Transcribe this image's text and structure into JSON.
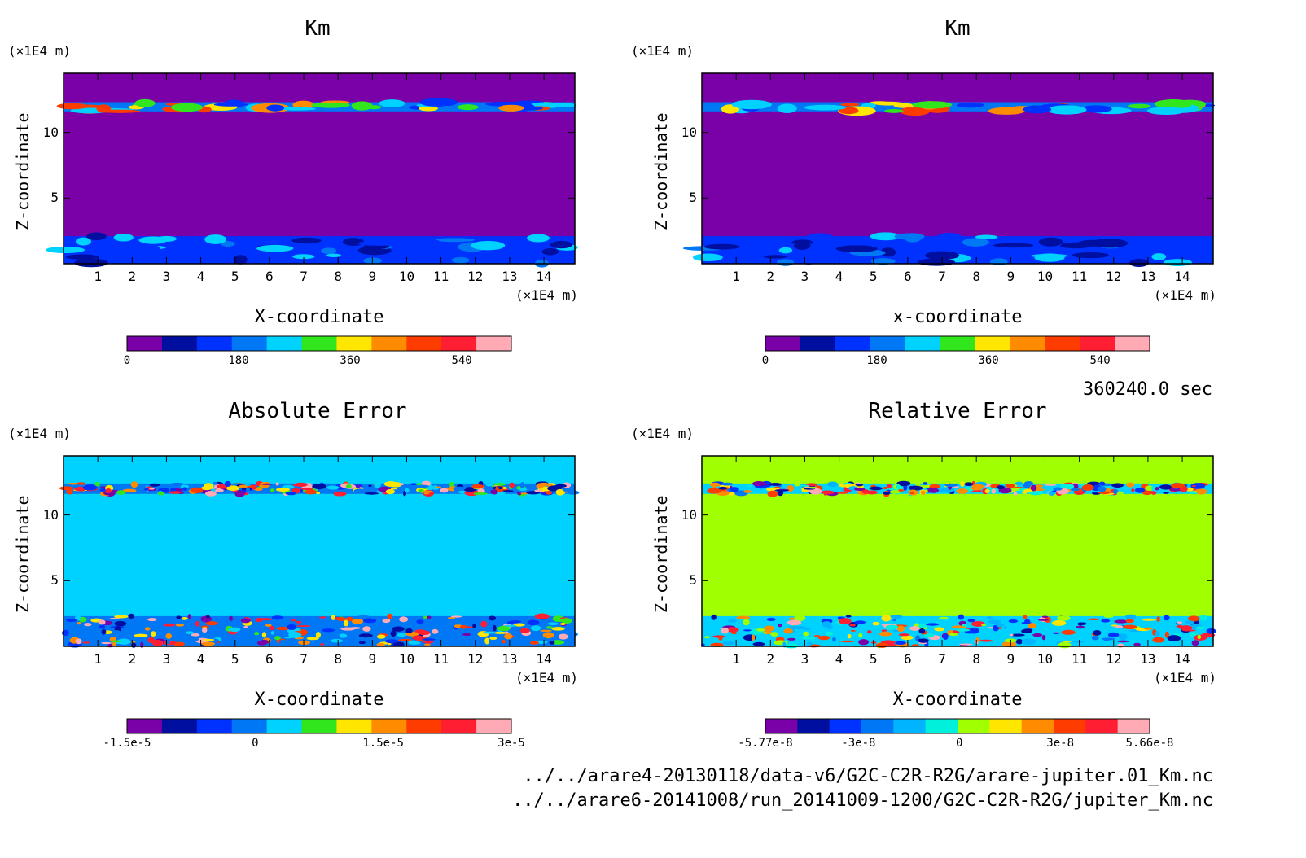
{
  "chart_data": [
    {
      "type": "heatmap",
      "title": "Km",
      "xlabel": "X-coordinate",
      "ylabel": "Z-coordinate",
      "x_unit": "(×1E4 m)",
      "y_unit": "(×1E4 m)",
      "xticks": [
        "1",
        "2",
        "3",
        "4",
        "5",
        "6",
        "7",
        "8",
        "9",
        "10",
        "11",
        "12",
        "13",
        "14"
      ],
      "yticks": [
        "5",
        "10"
      ],
      "xlim": [
        0,
        14.9
      ],
      "ylim": [
        0,
        14.5
      ],
      "background_color": "#7a00a8",
      "colorbar": {
        "colors": [
          "#7a00a8",
          "#000fa0",
          "#0032ff",
          "#0078f5",
          "#00d2ff",
          "#32e61e",
          "#ffe600",
          "#ff8c00",
          "#ff3c00",
          "#ff1e32",
          "#ffaab4"
        ],
        "tick_labels": [
          "0",
          "180",
          "360",
          "540"
        ],
        "tick_values": [
          0,
          180,
          360,
          540
        ],
        "range": [
          0,
          620
        ]
      },
      "features": [
        {
          "name": "upper layer band",
          "z_range": [
            11.6,
            12.3
          ]
        },
        {
          "name": "lower layer band",
          "z_range": [
            0,
            2.1
          ]
        }
      ]
    },
    {
      "type": "heatmap",
      "title": "Km",
      "xlabel": "x-coordinate",
      "ylabel": "Z-coordinate",
      "x_unit": "(×1E4 m)",
      "y_unit": "(×1E4 m)",
      "xticks": [
        "1",
        "2",
        "3",
        "4",
        "5",
        "6",
        "7",
        "8",
        "9",
        "10",
        "11",
        "12",
        "13",
        "14"
      ],
      "yticks": [
        "5",
        "10"
      ],
      "xlim": [
        0,
        14.9
      ],
      "ylim": [
        0,
        14.5
      ],
      "background_color": "#7a00a8",
      "colorbar": {
        "colors": [
          "#7a00a8",
          "#000fa0",
          "#0032ff",
          "#0078f5",
          "#00d2ff",
          "#32e61e",
          "#ffe600",
          "#ff8c00",
          "#ff3c00",
          "#ff1e32",
          "#ffaab4"
        ],
        "tick_labels": [
          "0",
          "180",
          "360",
          "540"
        ],
        "tick_values": [
          0,
          180,
          360,
          540
        ],
        "range": [
          0,
          620
        ]
      },
      "features": [
        {
          "name": "upper layer band",
          "z_range": [
            11.6,
            12.3
          ]
        },
        {
          "name": "lower layer band",
          "z_range": [
            0,
            2.1
          ]
        }
      ]
    },
    {
      "type": "heatmap",
      "title": "Absolute Error",
      "xlabel": "X-coordinate",
      "ylabel": "Z-coordinate",
      "x_unit": "(×1E4 m)",
      "y_unit": "(×1E4 m)",
      "xticks": [
        "1",
        "2",
        "3",
        "4",
        "5",
        "6",
        "7",
        "8",
        "9",
        "10",
        "11",
        "12",
        "13",
        "14"
      ],
      "yticks": [
        "5",
        "10"
      ],
      "xlim": [
        0,
        14.9
      ],
      "ylim": [
        0,
        14.5
      ],
      "background_color": "#00d2ff",
      "colorbar": {
        "colors": [
          "#7a00a8",
          "#000fa0",
          "#0032ff",
          "#0078f5",
          "#00d2ff",
          "#32e61e",
          "#ffe600",
          "#ff8c00",
          "#ff3c00",
          "#ff1e32",
          "#ffaab4"
        ],
        "tick_labels": [
          "-1.5e-5",
          "0",
          "1.5e-5",
          "3e-5"
        ],
        "tick_values": [
          -1.5e-05,
          0,
          1.5e-05,
          3e-05
        ]
      },
      "features": [
        {
          "name": "upper noise band",
          "z_range": [
            11.6,
            12.4
          ]
        },
        {
          "name": "lower noise band",
          "z_range": [
            0,
            2.3
          ]
        }
      ]
    },
    {
      "type": "heatmap",
      "title": "Relative Error",
      "xlabel": "X-coordinate",
      "ylabel": "Z-coordinate",
      "x_unit": "(×1E4 m)",
      "y_unit": "(×1E4 m)",
      "xticks": [
        "1",
        "2",
        "3",
        "4",
        "5",
        "6",
        "7",
        "8",
        "9",
        "10",
        "11",
        "12",
        "13",
        "14"
      ],
      "yticks": [
        "5",
        "10"
      ],
      "xlim": [
        0,
        14.9
      ],
      "ylim": [
        0,
        14.5
      ],
      "background_color": "#a0ff00",
      "colorbar": {
        "colors": [
          "#7a00a8",
          "#000fa0",
          "#0032ff",
          "#0078f5",
          "#00b4ff",
          "#00f0dc",
          "#a0ff00",
          "#ffe600",
          "#ff8c00",
          "#ff3c00",
          "#ff1e32",
          "#ffaab4"
        ],
        "tick_labels": [
          "-5.77e-8",
          "-3e-8",
          "0",
          "3e-8",
          "5.66e-8"
        ],
        "tick_values": [
          -5.77e-08,
          -3e-08,
          0,
          3e-08,
          5.66e-08
        ]
      },
      "features": [
        {
          "name": "upper noise band",
          "z_range": [
            11.6,
            12.4
          ]
        },
        {
          "name": "lower noise band",
          "z_range": [
            0,
            2.3
          ]
        }
      ]
    }
  ],
  "time_label": "360240.0 sec",
  "file_paths": [
    "../../arare4-20130118/data-v6/G2C-C2R-R2G/arare-jupiter.01_Km.nc",
    "../../arare6-20141008/run_20141009-1200/G2C-C2R-R2G/jupiter_Km.nc"
  ]
}
